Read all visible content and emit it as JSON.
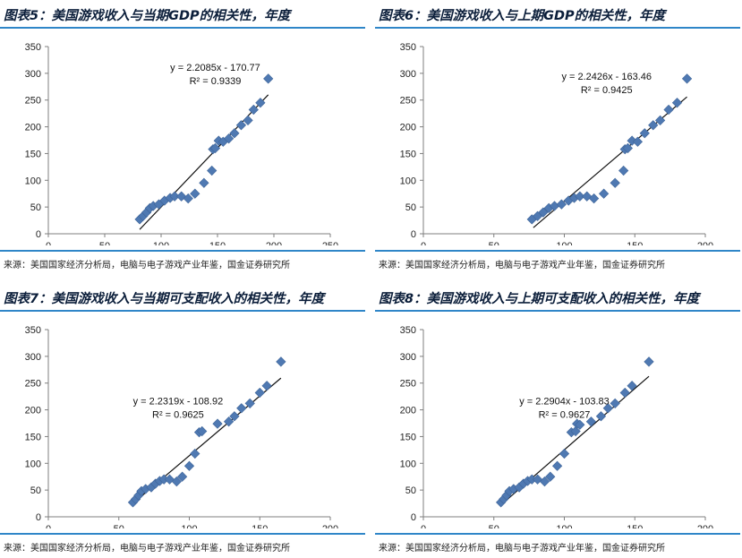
{
  "source_text": "来源：美国国家经济分析局，电脑与电子游戏产业年鉴，国金证券研究所",
  "colors": {
    "accent_rule": "#2f86c8",
    "marker": "#4f79b2",
    "title": "#0b1e3a"
  },
  "chart_data": [
    {
      "type": "scatter",
      "title": "图表5：美国游戏收入与当期GDP的相关性，年度",
      "equation": "y = 2.2085x - 170.77",
      "r2": "R² = 0.9339",
      "xlim": [
        0,
        250
      ],
      "ylim": [
        0,
        350
      ],
      "xticks": [
        0,
        50,
        100,
        150,
        200,
        250
      ],
      "yticks": [
        0,
        50,
        100,
        150,
        200,
        250,
        300,
        350
      ],
      "trend": {
        "slope": 2.2085,
        "intercept": -170.77,
        "x0": 81,
        "x1": 195
      },
      "annotation_at": [
        148,
        305
      ],
      "points": [
        [
          81,
          27
        ],
        [
          84,
          33
        ],
        [
          87,
          40
        ],
        [
          90,
          48
        ],
        [
          93,
          52
        ],
        [
          98,
          55
        ],
        [
          103,
          62
        ],
        [
          108,
          67
        ],
        [
          112,
          70
        ],
        [
          118,
          70
        ],
        [
          124,
          66
        ],
        [
          130,
          75
        ],
        [
          138,
          95
        ],
        [
          145,
          118
        ],
        [
          146,
          158
        ],
        [
          148,
          160
        ],
        [
          151,
          174
        ],
        [
          155,
          172
        ],
        [
          160,
          178
        ],
        [
          165,
          188
        ],
        [
          171,
          203
        ],
        [
          177,
          212
        ],
        [
          182,
          232
        ],
        [
          188,
          245
        ],
        [
          195,
          290
        ]
      ]
    },
    {
      "type": "scatter",
      "title": "图表6：美国游戏收入与上期GDP的相关性，年度",
      "equation": "y = 2.2426x - 163.46",
      "r2": "R² = 0.9425",
      "xlim": [
        0,
        200
      ],
      "ylim": [
        0,
        350
      ],
      "xticks": [
        0,
        50,
        100,
        150,
        200
      ],
      "yticks": [
        0,
        50,
        100,
        150,
        200,
        250,
        300,
        350
      ],
      "trend": {
        "slope": 2.2426,
        "intercept": -163.46,
        "x0": 78,
        "x1": 187
      },
      "annotation_at": [
        130,
        288
      ],
      "points": [
        [
          77,
          27
        ],
        [
          81,
          33
        ],
        [
          85,
          40
        ],
        [
          89,
          48
        ],
        [
          93,
          52
        ],
        [
          98,
          55
        ],
        [
          103,
          62
        ],
        [
          107,
          67
        ],
        [
          111,
          70
        ],
        [
          116,
          70
        ],
        [
          121,
          66
        ],
        [
          128,
          75
        ],
        [
          136,
          95
        ],
        [
          142,
          118
        ],
        [
          143,
          158
        ],
        [
          145,
          160
        ],
        [
          148,
          174
        ],
        [
          152,
          172
        ],
        [
          157,
          188
        ],
        [
          163,
          203
        ],
        [
          168,
          212
        ],
        [
          174,
          232
        ],
        [
          180,
          245
        ],
        [
          187,
          290
        ]
      ]
    },
    {
      "type": "scatter",
      "title": "图表7：美国游戏收入与当期可支配收入的相关性，年度",
      "equation": "y = 2.2319x - 108.92",
      "r2": "R² = 0.9625",
      "xlim": [
        0,
        200
      ],
      "ylim": [
        0,
        350
      ],
      "xticks": [
        0,
        50,
        100,
        150,
        200
      ],
      "yticks": [
        0,
        50,
        100,
        150,
        200,
        250,
        300,
        350
      ],
      "trend": {
        "slope": 2.2319,
        "intercept": -108.92,
        "x0": 60,
        "x1": 165
      },
      "annotation_at": [
        92,
        210
      ],
      "points": [
        [
          60,
          27
        ],
        [
          62,
          33
        ],
        [
          64,
          40
        ],
        [
          66,
          48
        ],
        [
          69,
          52
        ],
        [
          73,
          55
        ],
        [
          76,
          62
        ],
        [
          79,
          67
        ],
        [
          82,
          70
        ],
        [
          86,
          70
        ],
        [
          91,
          66
        ],
        [
          95,
          75
        ],
        [
          100,
          95
        ],
        [
          104,
          118
        ],
        [
          107,
          158
        ],
        [
          109,
          160
        ],
        [
          120,
          174
        ],
        [
          128,
          178
        ],
        [
          132,
          188
        ],
        [
          137,
          203
        ],
        [
          143,
          212
        ],
        [
          150,
          232
        ],
        [
          155,
          245
        ],
        [
          165,
          290
        ]
      ]
    },
    {
      "type": "scatter",
      "title": "图表8：美国游戏收入与上期可支配收入的相关性，年度",
      "equation": "y = 2.2904x - 103.83",
      "r2": "R² = 0.9627",
      "xlim": [
        0,
        200
      ],
      "ylim": [
        0,
        350
      ],
      "xticks": [
        0,
        50,
        100,
        150,
        200
      ],
      "yticks": [
        0,
        50,
        100,
        150,
        200,
        250,
        300,
        350
      ],
      "trend": {
        "slope": 2.2904,
        "intercept": -103.83,
        "x0": 56,
        "x1": 160
      },
      "annotation_at": [
        100,
        210
      ],
      "points": [
        [
          55,
          27
        ],
        [
          57,
          33
        ],
        [
          59,
          40
        ],
        [
          61,
          48
        ],
        [
          64,
          52
        ],
        [
          68,
          55
        ],
        [
          71,
          62
        ],
        [
          74,
          67
        ],
        [
          77,
          70
        ],
        [
          81,
          70
        ],
        [
          86,
          66
        ],
        [
          90,
          75
        ],
        [
          95,
          95
        ],
        [
          100,
          118
        ],
        [
          105,
          158
        ],
        [
          108,
          160
        ],
        [
          109,
          174
        ],
        [
          111,
          172
        ],
        [
          119,
          178
        ],
        [
          126,
          188
        ],
        [
          131,
          203
        ],
        [
          136,
          212
        ],
        [
          143,
          232
        ],
        [
          148,
          245
        ],
        [
          160,
          290
        ]
      ]
    }
  ]
}
